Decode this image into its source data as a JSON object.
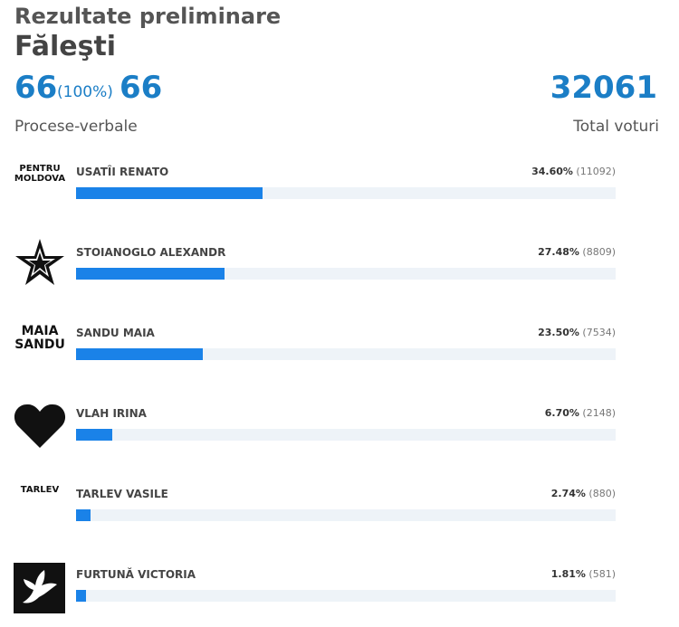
{
  "header": {
    "title": "Rezultate preliminare",
    "region": "Făleşti",
    "processed": "66",
    "processed_pct": "(100%)",
    "total_processed": "66",
    "processed_label": "Procese-verbale",
    "total_votes": "32061",
    "total_votes_label": "Total voturi"
  },
  "candidates": [
    {
      "name": "USATÎI RENATO",
      "logo_text": [
        "PENTRU",
        "MOLDOVA"
      ],
      "percent": {
        "value": 34.6,
        "label": "34.60%"
      },
      "votes": {
        "value": 11092,
        "label": "(11092)"
      }
    },
    {
      "name": "STOIANOGLO ALEXANDR",
      "percent": {
        "value": 27.48,
        "label": "27.48%"
      },
      "votes": {
        "value": 8809,
        "label": "(8809)"
      }
    },
    {
      "name": "SANDU MAIA",
      "logo_text": [
        "MAIA",
        "SANDU"
      ],
      "percent": {
        "value": 23.5,
        "label": "23.50%"
      },
      "votes": {
        "value": 7534,
        "label": "(7534)"
      }
    },
    {
      "name": "VLAH IRINA",
      "percent": {
        "value": 6.7,
        "label": "6.70%"
      },
      "votes": {
        "value": 2148,
        "label": "(2148)"
      }
    },
    {
      "name": "TARLEV VASILE",
      "logo_text": [
        "TARLEV"
      ],
      "percent": {
        "value": 2.74,
        "label": "2.74%"
      },
      "votes": {
        "value": 880,
        "label": "(880)"
      }
    },
    {
      "name": "FURTUNĂ VICTORIA",
      "percent": {
        "value": 1.81,
        "label": "1.81%"
      },
      "votes": {
        "value": 581,
        "label": "(581)"
      }
    }
  ]
}
